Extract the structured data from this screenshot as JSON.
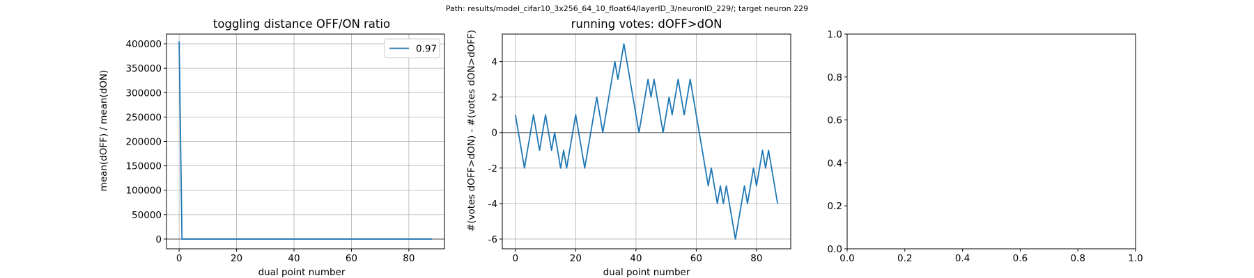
{
  "suptitle": "Path: results/model_cifar10_3x256_64_10_float64/layerID_3/neuronID_229/; target neuron 229",
  "colors": {
    "series": "#1f77b4",
    "grid": "#b0b0b0",
    "zero_line": "#808080",
    "axes": "#000000"
  },
  "chart_data": [
    {
      "type": "line",
      "title": "toggling distance OFF/ON ratio",
      "xlabel": "dual point number",
      "ylabel": "mean(dOFF) / mean(dON)",
      "xlim": [
        -4.4,
        92.4
      ],
      "ylim": [
        -20000,
        420000
      ],
      "xticks": [
        0,
        20,
        40,
        60,
        80
      ],
      "yticks": [
        0,
        50000,
        100000,
        150000,
        200000,
        250000,
        300000,
        350000,
        400000
      ],
      "grid": true,
      "legend": {
        "position": "top-right",
        "entries": [
          "0.97"
        ]
      },
      "hline": 0,
      "series": [
        {
          "name": "0.97",
          "x": [
            0,
            1,
            2,
            88
          ],
          "y": [
            405000,
            0,
            0,
            0
          ]
        }
      ]
    },
    {
      "type": "line",
      "title": "running votes: dOFF>dON",
      "xlabel": "dual point number",
      "ylabel": "#(votes dOFF>dON) - #(votes dON>dOFF)",
      "xlim": [
        -4.35,
        91.35
      ],
      "ylim": [
        -6.55,
        5.55
      ],
      "xticks": [
        0,
        20,
        40,
        60,
        80
      ],
      "yticks": [
        -6,
        -4,
        -2,
        0,
        2,
        4
      ],
      "grid": true,
      "hline": 0,
      "series": [
        {
          "x": [
            0,
            1,
            2,
            3,
            4,
            5,
            6,
            7,
            8,
            9,
            10,
            11,
            12,
            13,
            14,
            15,
            16,
            17,
            18,
            19,
            20,
            21,
            22,
            23,
            24,
            25,
            26,
            27,
            28,
            29,
            30,
            31,
            32,
            33,
            34,
            35,
            36,
            37,
            38,
            39,
            40,
            41,
            42,
            43,
            44,
            45,
            46,
            47,
            48,
            49,
            50,
            51,
            52,
            53,
            54,
            55,
            56,
            57,
            58,
            59,
            60,
            61,
            62,
            63,
            64,
            65,
            66,
            67,
            68,
            69,
            70,
            71,
            72,
            73,
            74,
            75,
            76,
            77,
            78,
            79,
            80,
            81,
            82,
            83,
            84,
            85,
            86,
            87
          ],
          "y": [
            1,
            0,
            -1,
            -2,
            -1,
            0,
            1,
            0,
            -1,
            0,
            1,
            0,
            -1,
            0,
            -1,
            -2,
            -1,
            -2,
            -1,
            0,
            1,
            0,
            -1,
            -2,
            -1,
            0,
            1,
            2,
            1,
            0,
            1,
            2,
            3,
            4,
            3,
            4,
            5,
            4,
            3,
            2,
            1,
            0,
            1,
            2,
            3,
            2,
            3,
            2,
            1,
            0,
            1,
            2,
            1,
            2,
            3,
            2,
            1,
            2,
            3,
            2,
            1,
            0,
            -1,
            -2,
            -3,
            -2,
            -3,
            -4,
            -3,
            -4,
            -3,
            -4,
            -5,
            -6,
            -5,
            -4,
            -3,
            -4,
            -3,
            -2,
            -3,
            -2,
            -1,
            -2,
            -1,
            -2,
            -3,
            -4
          ]
        }
      ]
    },
    {
      "type": "line",
      "title": "",
      "xlabel": "",
      "ylabel": "",
      "xlim": [
        0,
        1
      ],
      "ylim": [
        0,
        1
      ],
      "xticks": [
        0.0,
        0.2,
        0.4,
        0.6,
        0.8,
        1.0
      ],
      "yticks": [
        0.0,
        0.2,
        0.4,
        0.6,
        0.8,
        1.0
      ],
      "tick_format": "1dp",
      "grid": false,
      "series": []
    }
  ]
}
